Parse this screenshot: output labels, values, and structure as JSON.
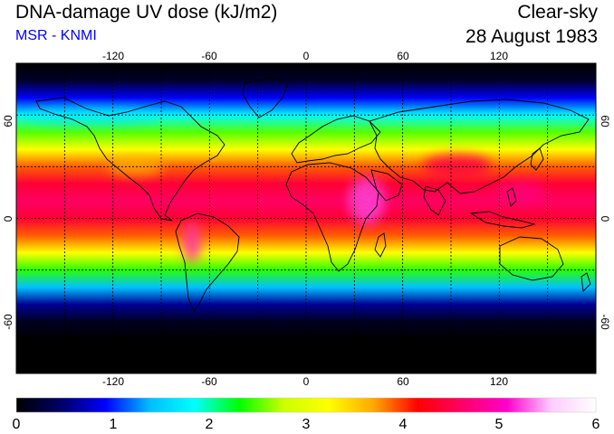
{
  "title": "DNA-damage UV dose (kJ/m2)",
  "subtitle": "MSR - KNMI",
  "condition": "Clear-sky",
  "date": "28 August 1983",
  "map": {
    "lon_range": [
      -180,
      180
    ],
    "lat_range": [
      -90,
      90
    ],
    "lon_ticks": [
      -120,
      -60,
      0,
      60,
      120
    ],
    "lat_ticks": [
      60,
      0,
      -60
    ],
    "lon_tick_labels": [
      "-120",
      "-60",
      "0",
      "60",
      "120"
    ],
    "lat_tick_labels": [
      "60",
      "0",
      "-60"
    ],
    "grid_spacing_deg": 30,
    "grid_style": "dotted",
    "features": [
      "coastlines",
      "graticule"
    ]
  },
  "colorbar": {
    "min": 0,
    "max": 6,
    "ticks": [
      "0",
      "1",
      "2",
      "3",
      "4",
      "5",
      "6"
    ],
    "colors": [
      "#000000",
      "#000066",
      "#0000ff",
      "#00bfff",
      "#00ffff",
      "#00ff00",
      "#ccff00",
      "#ffff00",
      "#ffaa00",
      "#ff0000",
      "#ff0066",
      "#ff00cc",
      "#ffccff",
      "#ffffff"
    ]
  },
  "field_profile_by_latitude": [
    {
      "lat": 90,
      "dose": 0.0
    },
    {
      "lat": 80,
      "dose": 0.2
    },
    {
      "lat": 70,
      "dose": 0.9
    },
    {
      "lat": 60,
      "dose": 1.8
    },
    {
      "lat": 50,
      "dose": 2.5
    },
    {
      "lat": 40,
      "dose": 3.2
    },
    {
      "lat": 30,
      "dose": 3.9
    },
    {
      "lat": 20,
      "dose": 4.4
    },
    {
      "lat": 10,
      "dose": 4.6
    },
    {
      "lat": 0,
      "dose": 4.4
    },
    {
      "lat": -10,
      "dose": 3.9
    },
    {
      "lat": -20,
      "dose": 3.2
    },
    {
      "lat": -30,
      "dose": 2.4
    },
    {
      "lat": -40,
      "dose": 1.4
    },
    {
      "lat": -50,
      "dose": 0.6
    },
    {
      "lat": -60,
      "dose": 0.15
    },
    {
      "lat": -70,
      "dose": 0.0
    },
    {
      "lat": -90,
      "dose": 0.0
    }
  ]
}
